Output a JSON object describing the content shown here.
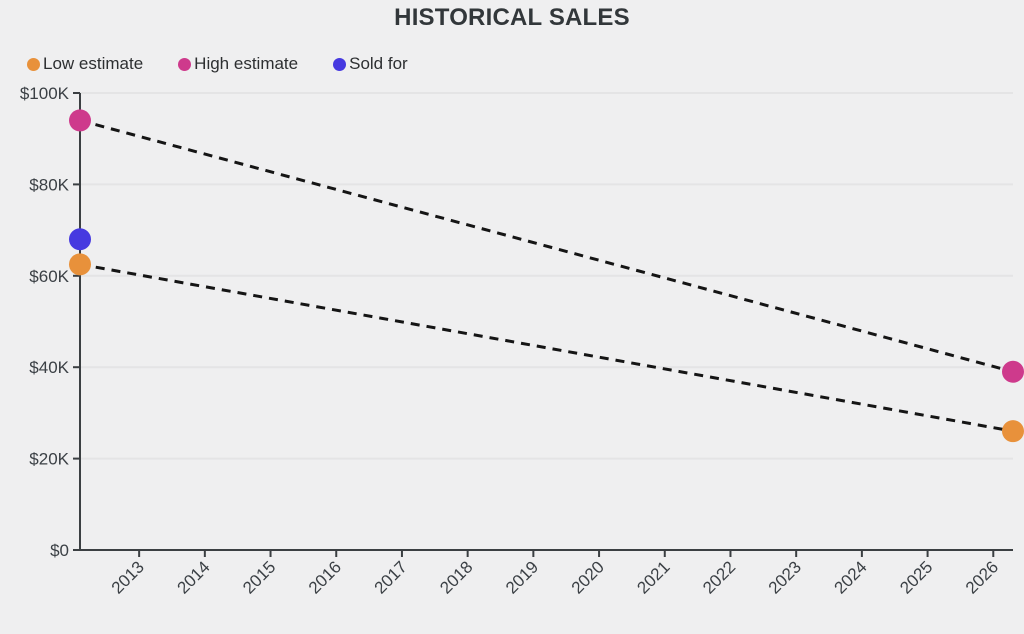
{
  "header": {
    "title": "HISTORICAL SALES"
  },
  "legend": [
    {
      "label": "Low estimate",
      "color": "#E8913B"
    },
    {
      "label": "High estimate",
      "color": "#CE3A8C"
    },
    {
      "label": "Sold for",
      "color": "#4639E0"
    }
  ],
  "chart_data": {
    "type": "scatter",
    "title": "HISTORICAL SALES",
    "xlabel": "",
    "ylabel": "",
    "legend_position": "top-left",
    "grid": true,
    "background": "#efeff0",
    "grid_color": "#e4e4e5",
    "axis_color": "#3b3f42",
    "label_color": "#3b4045",
    "connector_color": "#151515",
    "connector_style": "dashed",
    "marker_radius": 11,
    "x_range": [
      2012.1,
      2026.3
    ],
    "ylim": [
      0,
      100000
    ],
    "yticks": [
      {
        "value": 0,
        "label": "$0"
      },
      {
        "value": 20000,
        "label": "$20K"
      },
      {
        "value": 40000,
        "label": "$40K"
      },
      {
        "value": 60000,
        "label": "$60K"
      },
      {
        "value": 80000,
        "label": "$80K"
      },
      {
        "value": 100000,
        "label": "$100K"
      }
    ],
    "xticks": [
      {
        "value": 2013,
        "label": "2013"
      },
      {
        "value": 2014,
        "label": "2014"
      },
      {
        "value": 2015,
        "label": "2015"
      },
      {
        "value": 2016,
        "label": "2016"
      },
      {
        "value": 2017,
        "label": "2017"
      },
      {
        "value": 2018,
        "label": "2018"
      },
      {
        "value": 2019,
        "label": "2019"
      },
      {
        "value": 2020,
        "label": "2020"
      },
      {
        "value": 2021,
        "label": "2021"
      },
      {
        "value": 2022,
        "label": "2022"
      },
      {
        "value": 2023,
        "label": "2023"
      },
      {
        "value": 2024,
        "label": "2024"
      },
      {
        "value": 2025,
        "label": "2025"
      },
      {
        "value": 2026,
        "label": "2026"
      }
    ],
    "series": [
      {
        "name": "Low estimate",
        "color": "#E8913B",
        "line": "dashed",
        "points": [
          {
            "x": 2012.1,
            "y": 62500
          },
          {
            "x": 2026.3,
            "y": 26000
          }
        ]
      },
      {
        "name": "High estimate",
        "color": "#CE3A8C",
        "line": "dashed",
        "points": [
          {
            "x": 2012.1,
            "y": 94000
          },
          {
            "x": 2026.3,
            "y": 39000
          }
        ]
      },
      {
        "name": "Sold for",
        "color": "#4639E0",
        "line": "none",
        "points": [
          {
            "x": 2012.1,
            "y": 68000
          }
        ]
      }
    ]
  }
}
